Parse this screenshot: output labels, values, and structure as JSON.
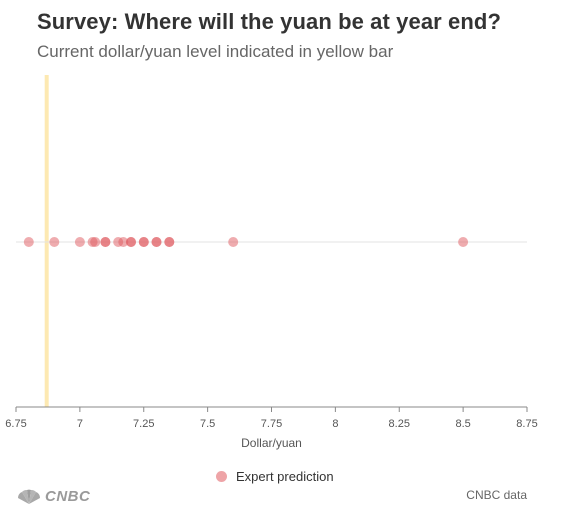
{
  "title": "Survey: Where will the yuan be at year end?",
  "subtitle": "Current dollar/yuan level indicated in yellow bar",
  "source": "CNBC data",
  "logo": "CNBC",
  "colors": {
    "point": "#e05a5f",
    "current_bar": "#fde9b2",
    "axis": "#888888",
    "guide": "#e3e3e3"
  },
  "chart_data": {
    "type": "scatter",
    "title": "Survey: Where will the yuan be at year end?",
    "subtitle": "Current dollar/yuan level indicated in yellow bar",
    "xlabel": "Dollar/yuan",
    "ylabel": "",
    "xlim": [
      6.75,
      8.75
    ],
    "x_ticks": [
      "6.75",
      "7",
      "7.25",
      "7.5",
      "7.75",
      "8",
      "8.25",
      "8.5",
      "8.75"
    ],
    "current_level": 6.87,
    "grid": false,
    "legend_position": "bottom",
    "series": [
      {
        "name": "Expert prediction",
        "values": [
          6.8,
          6.9,
          7.0,
          7.05,
          7.06,
          7.1,
          7.1,
          7.15,
          7.17,
          7.2,
          7.2,
          7.25,
          7.25,
          7.3,
          7.3,
          7.35,
          7.35,
          7.6,
          8.5
        ]
      }
    ]
  }
}
